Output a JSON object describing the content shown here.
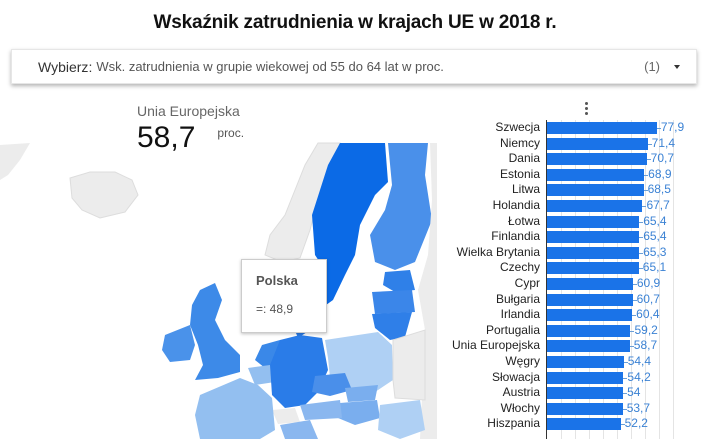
{
  "title": "Wskaźnik zatrudnienia w krajach UE w 2018 r.",
  "selector": {
    "label": "Wybierz",
    "value": "Wsk. zatrudnienia w grupie wiekowej od 55 do 64 lat w proc.",
    "count": "(1)",
    "icon": "dropdown-caret-icon"
  },
  "scorecard": {
    "name": "Unia Europejska",
    "value": "58,7",
    "unit": "proc."
  },
  "tooltip": {
    "country": "Polska",
    "value": "=: 48,9"
  },
  "map": {
    "colors": {
      "high": "#0b6ae6",
      "mid": "#3d8ae8",
      "low": "#8fbbef",
      "lowest": "#b6d3f5",
      "nodata": "#ececec"
    }
  },
  "chart_menu_icon": "more-vert-icon",
  "colors": {
    "bar": "#1a73e8",
    "value_label": "#3b82d4"
  },
  "chart_data": {
    "type": "bar",
    "orientation": "horizontal",
    "title": "Wskaźnik zatrudnienia w krajach UE w 2018 r.",
    "xlabel": "",
    "ylabel": "",
    "unit": "proc.",
    "categories": [
      "Szwecja",
      "Niemcy",
      "Dania",
      "Estonia",
      "Litwa",
      "Holandia",
      "Łotwa",
      "Finlandia",
      "Wielka Brytania",
      "Czechy",
      "Cypr",
      "Bułgaria",
      "Irlandia",
      "Portugalia",
      "Unia Europejska",
      "Węgry",
      "Słowacja",
      "Austria",
      "Włochy",
      "Hiszpania"
    ],
    "values": [
      77.9,
      71.4,
      70.7,
      68.9,
      68.5,
      67.7,
      65.4,
      65.4,
      65.3,
      65.1,
      60.9,
      60.7,
      60.4,
      59.2,
      58.7,
      54.4,
      54.2,
      54,
      53.7,
      52.2
    ],
    "value_labels": [
      "77,9",
      "71,4",
      "70,7",
      "68,9",
      "68,5",
      "67,7",
      "65,4",
      "65,4",
      "65,3",
      "65,1",
      "60,9",
      "60,7",
      "60,4",
      "59,2",
      "58,7",
      "54,4",
      "54,2",
      "54",
      "53,7",
      "52,2"
    ],
    "grid": true
  }
}
